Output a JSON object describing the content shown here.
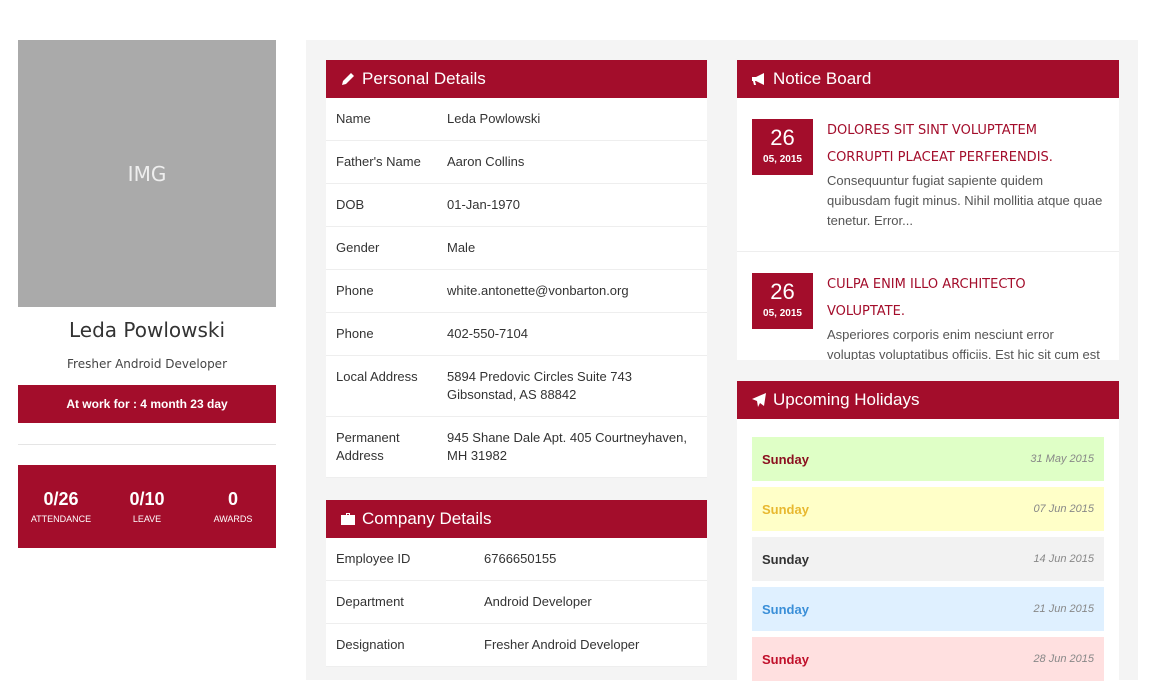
{
  "profile": {
    "image_label": "IMG",
    "name": "Leda Powlowski",
    "role": "Fresher Android Developer",
    "at_work": "At work for : 4 month 23 day",
    "stats": [
      {
        "value": "0/26",
        "label": "ATTENDANCE"
      },
      {
        "value": "0/10",
        "label": "LEAVE"
      },
      {
        "value": "0",
        "label": "AWARDS"
      }
    ]
  },
  "personal_details": {
    "title": "Personal Details",
    "rows": [
      [
        "Name",
        "Leda Powlowski"
      ],
      [
        "Father's Name",
        "Aaron Collins"
      ],
      [
        "DOB",
        "01-Jan-1970"
      ],
      [
        "Gender",
        "Male"
      ],
      [
        "Phone",
        "white.antonette@vonbarton.org"
      ],
      [
        "Phone",
        "402-550-7104"
      ],
      [
        "Local Address",
        "5894 Predovic Circles Suite 743 Gibsonstad, AS 88842"
      ],
      [
        "Permanent Address",
        "945 Shane Dale Apt. 405 Courtneyhaven, MH 31982"
      ]
    ]
  },
  "company_details": {
    "title": "Company Details",
    "rows": [
      [
        "Employee ID",
        "6766650155"
      ],
      [
        "Department",
        "Android Developer"
      ],
      [
        "Designation",
        "Fresher Android Developer"
      ]
    ]
  },
  "notice_board": {
    "title": "Notice Board",
    "notices": [
      {
        "day": "26",
        "month_year": "05, 2015",
        "title": "DOLORES SIT SINT VOLUPTATEM CORRUPTI PLACEAT PERFERENDIS.",
        "body": "Consequuntur fugiat sapiente quidem quibusdam fugit minus. Nihil mollitia atque quae tenetur. Error..."
      },
      {
        "day": "26",
        "month_year": "05, 2015",
        "title": "CULPA ENIM ILLO ARCHITECTO VOLUPTATE.",
        "body": "Asperiores corporis enim nesciunt error voluptas voluptatibus officiis. Est hic sit cum est voluptat"
      }
    ]
  },
  "upcoming_holidays": {
    "title": "Upcoming Holidays",
    "items": [
      {
        "day": "Sunday",
        "date": "31 May 2015",
        "bg": "#dfffc6",
        "color": "#8b1020"
      },
      {
        "day": "Sunday",
        "date": "07 Jun 2015",
        "bg": "#ffffc8",
        "color": "#e8b830"
      },
      {
        "day": "Sunday",
        "date": "14 Jun 2015",
        "bg": "#f2f2f2",
        "color": "#333333"
      },
      {
        "day": "Sunday",
        "date": "21 Jun 2015",
        "bg": "#dff0ff",
        "color": "#3a8fd8"
      },
      {
        "day": "Sunday",
        "date": "28 Jun 2015",
        "bg": "#ffe0e0",
        "color": "#c0102a"
      }
    ]
  }
}
